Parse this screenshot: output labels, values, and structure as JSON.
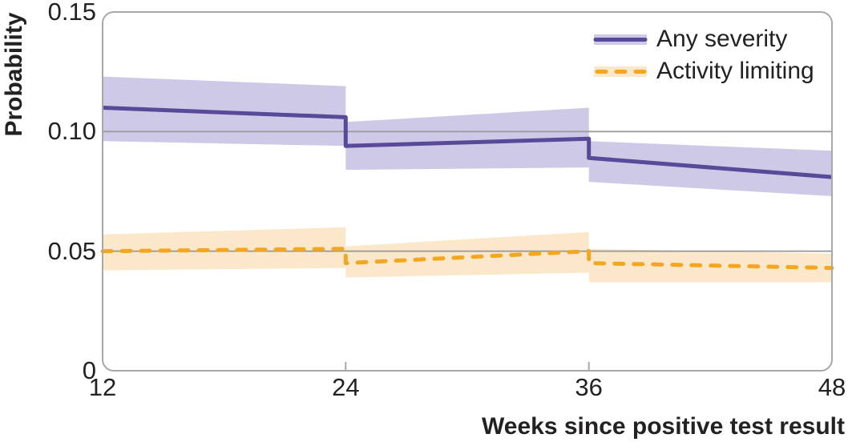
{
  "figure": {
    "ylabel": "Probability",
    "xlabel": "Weeks since positive test result"
  },
  "colors": {
    "text": "#232122",
    "axis_border": "#a8a8a8",
    "gridline": "#9c9c9c",
    "any_severity_line": "#584a98",
    "any_severity_band": "#cfc9e8",
    "activity_limiting_line": "#f3a721",
    "activity_limiting_band": "#fbe8ca"
  },
  "chart_data": {
    "type": "line",
    "title": "",
    "xlabel": "Weeks since positive test result",
    "ylabel": "Probability",
    "xlim": [
      12,
      48
    ],
    "ylim": [
      0,
      0.15
    ],
    "x_ticks": [
      12,
      24,
      36,
      48
    ],
    "x_tick_marks": [
      24,
      36
    ],
    "y_ticks": [
      "0",
      "0.05",
      "0.10",
      "0.15"
    ],
    "y_tick_values": [
      0,
      0.05,
      0.1,
      0.15
    ],
    "gridlines_y": [
      0.05,
      0.1
    ],
    "grid": "horizontal-only",
    "legend_position": "top-right-inside",
    "series": [
      {
        "name": "Any severity",
        "style": "solid",
        "color": "#584a98",
        "band_color": "#cfc9e8",
        "segments": [
          {
            "x": [
              12,
              24
            ],
            "y": [
              0.11,
              0.106
            ],
            "upper": [
              0.123,
              0.119
            ],
            "lower": [
              0.096,
              0.094
            ]
          },
          {
            "x": [
              24,
              36
            ],
            "y": [
              0.094,
              0.097
            ],
            "upper": [
              0.104,
              0.11
            ],
            "lower": [
              0.084,
              0.085
            ]
          },
          {
            "x": [
              36,
              48
            ],
            "y": [
              0.089,
              0.081
            ],
            "upper": [
              0.096,
              0.092
            ],
            "lower": [
              0.079,
              0.073
            ]
          }
        ]
      },
      {
        "name": "Activity limiting",
        "style": "dashed",
        "color": "#f3a721",
        "band_color": "#fbe8ca",
        "segments": [
          {
            "x": [
              12,
              24
            ],
            "y": [
              0.05,
              0.051
            ],
            "upper": [
              0.057,
              0.06
            ],
            "lower": [
              0.042,
              0.043
            ]
          },
          {
            "x": [
              24,
              36
            ],
            "y": [
              0.045,
              0.05
            ],
            "upper": [
              0.052,
              0.058
            ],
            "lower": [
              0.039,
              0.041
            ]
          },
          {
            "x": [
              36,
              48
            ],
            "y": [
              0.045,
              0.043
            ],
            "upper": [
              0.051,
              0.049
            ],
            "lower": [
              0.037,
              0.037
            ]
          }
        ]
      }
    ]
  }
}
